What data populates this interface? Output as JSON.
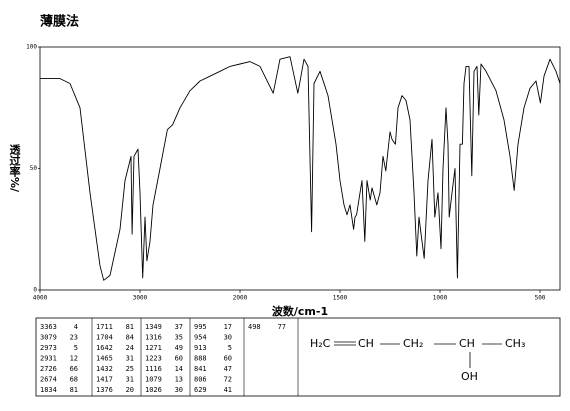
{
  "chart_data": {
    "type": "line",
    "title": "薄膜法",
    "x_label": "波数/cm-1",
    "y_label": "透过率%/",
    "xlim": [
      4000,
      400
    ],
    "ylim": [
      0,
      100
    ],
    "xticks": [
      4000,
      3000,
      2000,
      1500,
      1000,
      500
    ],
    "yticks": [
      0,
      50,
      100
    ],
    "color": "#000000",
    "x": [
      4000,
      3800,
      3700,
      3600,
      3500,
      3400,
      3363,
      3300,
      3200,
      3150,
      3120,
      3090,
      3079,
      3060,
      3020,
      3000,
      2973,
      2950,
      2931,
      2900,
      2870,
      2800,
      2726,
      2700,
      2674,
      2600,
      2500,
      2400,
      2300,
      2200,
      2100,
      2000,
      1950,
      1900,
      1834,
      1800,
      1750,
      1711,
      1704,
      1680,
      1660,
      1642,
      1630,
      1600,
      1560,
      1520,
      1500,
      1480,
      1465,
      1450,
      1432,
      1425,
      1417,
      1400,
      1390,
      1376,
      1365,
      1349,
      1340,
      1316,
      1300,
      1285,
      1271,
      1250,
      1240,
      1223,
      1210,
      1190,
      1170,
      1150,
      1130,
      1116,
      1105,
      1090,
      1079,
      1060,
      1040,
      1026,
      1010,
      995,
      985,
      970,
      960,
      954,
      940,
      925,
      913,
      900,
      888,
      880,
      870,
      855,
      841,
      830,
      815,
      806,
      795,
      770,
      720,
      680,
      650,
      629,
      610,
      580,
      550,
      520,
      498,
      480,
      450,
      420,
      400
    ],
    "values": [
      87,
      87,
      85,
      75,
      40,
      10,
      4,
      6,
      25,
      45,
      50,
      55,
      23,
      55,
      58,
      40,
      5,
      30,
      12,
      20,
      35,
      50,
      66,
      67,
      68,
      75,
      82,
      86,
      88,
      90,
      92,
      93,
      94,
      92,
      81,
      95,
      96,
      81,
      84,
      95,
      92,
      24,
      85,
      90,
      80,
      60,
      45,
      35,
      31,
      35,
      25,
      30,
      31,
      40,
      45,
      20,
      45,
      37,
      42,
      35,
      40,
      55,
      49,
      65,
      62,
      60,
      75,
      80,
      78,
      70,
      40,
      14,
      30,
      20,
      13,
      45,
      62,
      30,
      40,
      17,
      50,
      75,
      60,
      30,
      40,
      50,
      5,
      60,
      60,
      85,
      92,
      92,
      47,
      90,
      92,
      72,
      93,
      90,
      82,
      70,
      55,
      41,
      60,
      75,
      83,
      86,
      77,
      88,
      95,
      90,
      85
    ]
  },
  "peak_table": [
    [
      [
        "3363",
        "4"
      ],
      [
        "3079",
        "23"
      ],
      [
        "2973",
        "5"
      ],
      [
        "2931",
        "12"
      ],
      [
        "2726",
        "66"
      ],
      [
        "2674",
        "68"
      ],
      [
        "1834",
        "81"
      ]
    ],
    [
      [
        "1711",
        "81"
      ],
      [
        "1704",
        "84"
      ],
      [
        "1642",
        "24"
      ],
      [
        "1465",
        "31"
      ],
      [
        "1432",
        "25"
      ],
      [
        "1417",
        "31"
      ],
      [
        "1376",
        "20"
      ]
    ],
    [
      [
        "1349",
        "37"
      ],
      [
        "1316",
        "35"
      ],
      [
        "1271",
        "49"
      ],
      [
        "1223",
        "60"
      ],
      [
        "1116",
        "14"
      ],
      [
        "1079",
        "13"
      ],
      [
        "1026",
        "30"
      ]
    ],
    [
      [
        "995",
        "17"
      ],
      [
        "954",
        "30"
      ],
      [
        "913",
        "5"
      ],
      [
        "888",
        "60"
      ],
      [
        "841",
        "47"
      ],
      [
        "806",
        "72"
      ],
      [
        "629",
        "41"
      ]
    ],
    [
      [
        "498",
        "77"
      ]
    ]
  ],
  "structure": [
    "H₂C",
    "CH",
    "CH₂",
    "CH",
    "CH₃",
    "OH"
  ]
}
